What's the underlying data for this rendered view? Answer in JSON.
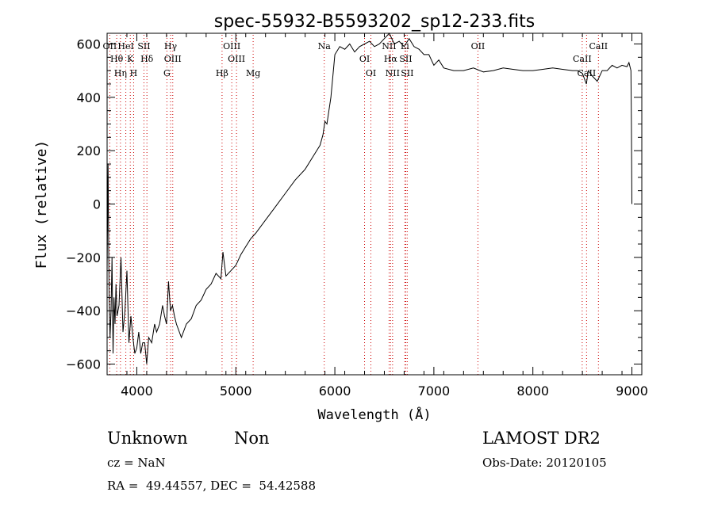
{
  "chart_data": {
    "type": "line",
    "title": "spec-55932-B5593202_sp12-233.fits",
    "xlabel": "Wavelength (Å)",
    "ylabel": "Flux (relative)",
    "xlim": [
      3700,
      9100
    ],
    "ylim": [
      -640,
      640
    ],
    "x_ticks": [
      4000,
      5000,
      6000,
      7000,
      8000,
      9000
    ],
    "y_ticks": [
      -600,
      -400,
      -200,
      0,
      200,
      400,
      600
    ],
    "grid": false,
    "legend": "none",
    "line_color": "#000000",
    "marker_color": "#cc0000",
    "series": [
      {
        "x": [
          3700,
          3710,
          3720,
          3730,
          3740,
          3750,
          3760,
          3770,
          3780,
          3790,
          3800,
          3820,
          3840,
          3860,
          3880,
          3900,
          3920,
          3940,
          3960,
          3980,
          4000,
          4020,
          4040,
          4060,
          4080,
          4100,
          4120,
          4150,
          4180,
          4200,
          4230,
          4260,
          4280,
          4300,
          4320,
          4340,
          4360,
          4380,
          4400,
          4450,
          4500,
          4550,
          4600,
          4650,
          4700,
          4750,
          4800,
          4850,
          4870,
          4900,
          4950,
          5000,
          5050,
          5100,
          5150,
          5200,
          5300,
          5400,
          5500,
          5600,
          5700,
          5800,
          5850,
          5880,
          5900,
          5920,
          5940,
          5960,
          5980,
          6000,
          6050,
          6100,
          6150,
          6200,
          6250,
          6300,
          6350,
          6400,
          6450,
          6500,
          6550,
          6600,
          6650,
          6700,
          6750,
          6800,
          6850,
          6900,
          6950,
          7000,
          7050,
          7100,
          7200,
          7300,
          7400,
          7500,
          7600,
          7700,
          7800,
          7900,
          8000,
          8100,
          8200,
          8300,
          8400,
          8450,
          8500,
          8540,
          8560,
          8600,
          8650,
          8700,
          8750,
          8800,
          8850,
          8900,
          8950,
          8970,
          8990,
          8995,
          9000
        ],
        "y": [
          -250,
          150,
          -350,
          -500,
          -400,
          -200,
          -560,
          -350,
          -450,
          -300,
          -420,
          -380,
          -200,
          -480,
          -400,
          -250,
          -520,
          -420,
          -500,
          -560,
          -540,
          -480,
          -560,
          -520,
          -520,
          -600,
          -500,
          -520,
          -450,
          -480,
          -450,
          -380,
          -420,
          -450,
          -290,
          -400,
          -380,
          -420,
          -450,
          -500,
          -450,
          -430,
          -380,
          -360,
          -320,
          -300,
          -260,
          -280,
          -180,
          -270,
          -250,
          -230,
          -190,
          -160,
          -130,
          -110,
          -60,
          -10,
          40,
          90,
          130,
          190,
          220,
          260,
          310,
          300,
          350,
          400,
          480,
          560,
          590,
          580,
          600,
          570,
          590,
          600,
          610,
          590,
          600,
          620,
          640,
          600,
          610,
          590,
          620,
          590,
          580,
          560,
          560,
          520,
          540,
          510,
          500,
          500,
          510,
          495,
          500,
          510,
          505,
          500,
          500,
          505,
          510,
          505,
          500,
          500,
          490,
          450,
          500,
          480,
          460,
          500,
          500,
          520,
          510,
          520,
          515,
          530,
          500,
          300,
          0
        ]
      }
    ],
    "line_labels": [
      {
        "x": 3727,
        "labels": [
          "OII"
        ]
      },
      {
        "x": 3797,
        "labels": [
          "Hθ"
        ]
      },
      {
        "x": 3835,
        "labels": [
          "Hη"
        ]
      },
      {
        "x": 3889,
        "labels": [
          "HeI"
        ]
      },
      {
        "x": 3934,
        "labels": [
          "K"
        ]
      },
      {
        "x": 3968,
        "labels": [
          "H"
        ]
      },
      {
        "x": 4072,
        "labels": [
          "SII"
        ]
      },
      {
        "x": 4102,
        "labels": [
          "Hδ"
        ]
      },
      {
        "x": 4304,
        "labels": [
          "G"
        ]
      },
      {
        "x": 4341,
        "labels": [
          "Hγ"
        ]
      },
      {
        "x": 4363,
        "labels": [
          "OIII"
        ]
      },
      {
        "x": 4861,
        "labels": [
          "Hβ"
        ]
      },
      {
        "x": 4959,
        "labels": [
          "OIII"
        ]
      },
      {
        "x": 5007,
        "labels": [
          "OIII"
        ]
      },
      {
        "x": 5175,
        "labels": [
          "Mg"
        ]
      },
      {
        "x": 5893,
        "labels": [
          "Na"
        ]
      },
      {
        "x": 6300,
        "labels": [
          "OI"
        ]
      },
      {
        "x": 6364,
        "labels": [
          "OI"
        ]
      },
      {
        "x": 6548,
        "labels": [
          "NII"
        ]
      },
      {
        "x": 6563,
        "labels": [
          "Hα"
        ]
      },
      {
        "x": 6583,
        "labels": [
          "NII"
        ]
      },
      {
        "x": 6707,
        "labels": [
          "Li"
        ]
      },
      {
        "x": 6716,
        "labels": [
          "SII"
        ]
      },
      {
        "x": 6731,
        "labels": [
          "SII"
        ]
      },
      {
        "x": 7445,
        "labels": [
          "OII"
        ]
      },
      {
        "x": 8498,
        "labels": [
          "CaII"
        ]
      },
      {
        "x": 8542,
        "labels": [
          "CaII"
        ]
      },
      {
        "x": 8662,
        "labels": [
          "CaII"
        ]
      }
    ]
  },
  "info": {
    "class": "Unknown",
    "subclass": "Non",
    "cz": "cz = NaN",
    "coords": "RA =  49.44557, DEC =  54.42588",
    "survey": "LAMOST DR2",
    "obs_date": "Obs-Date: 20120105"
  }
}
